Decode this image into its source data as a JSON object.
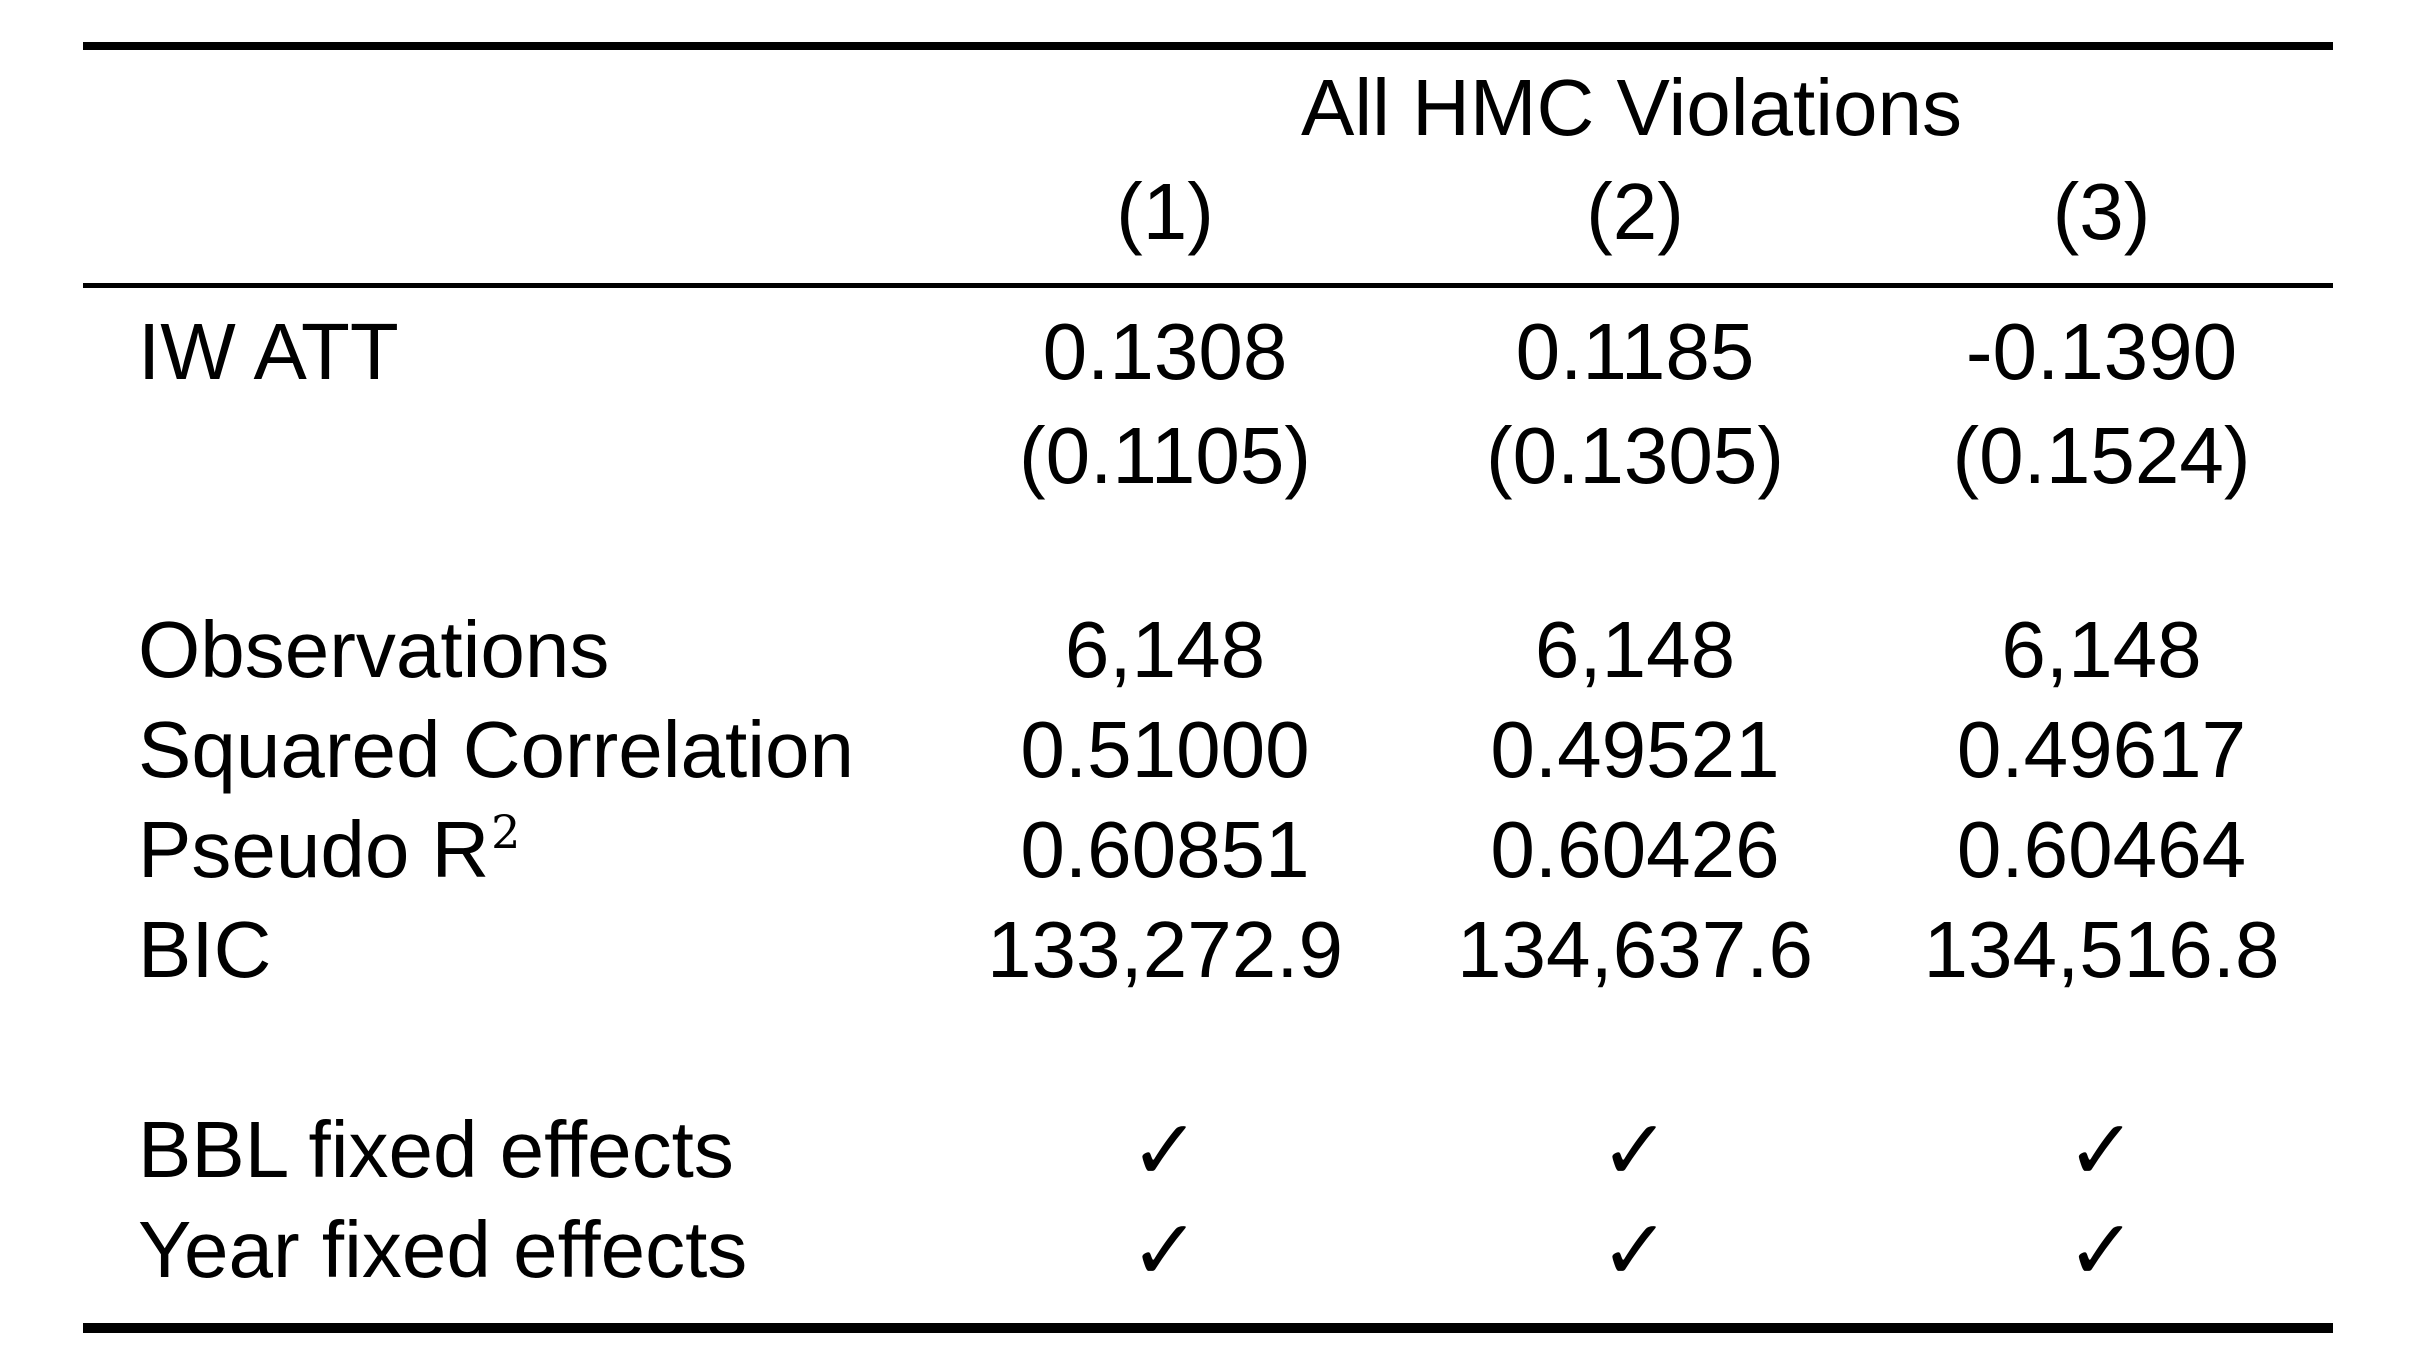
{
  "table": {
    "group_header": "All HMC Violations",
    "column_headers": [
      "(1)",
      "(2)",
      "(3)"
    ],
    "coefficient": {
      "label": "IW ATT",
      "estimates": [
        "0.1308",
        "0.1185",
        "-0.1390"
      ],
      "standard_errors": [
        "(0.1105)",
        "(0.1305)",
        "(0.1524)"
      ]
    },
    "stats": [
      {
        "label": "Observations",
        "values": [
          "6,148",
          "6,148",
          "6,148"
        ]
      },
      {
        "label": "Squared Correlation",
        "values": [
          "0.51000",
          "0.49521",
          "0.49617"
        ]
      },
      {
        "label_base": "Pseudo R",
        "label_sup": "2",
        "values": [
          "0.60851",
          "0.60426",
          "0.60464"
        ]
      },
      {
        "label": "BIC",
        "values": [
          "133,272.9",
          "134,637.6",
          "134,516.8"
        ]
      }
    ],
    "fixed_effects": [
      {
        "label": "BBL fixed effects",
        "values": [
          "✓",
          "✓",
          "✓"
        ]
      },
      {
        "label": "Year fixed effects",
        "values": [
          "✓",
          "✓",
          "✓"
        ]
      }
    ]
  }
}
